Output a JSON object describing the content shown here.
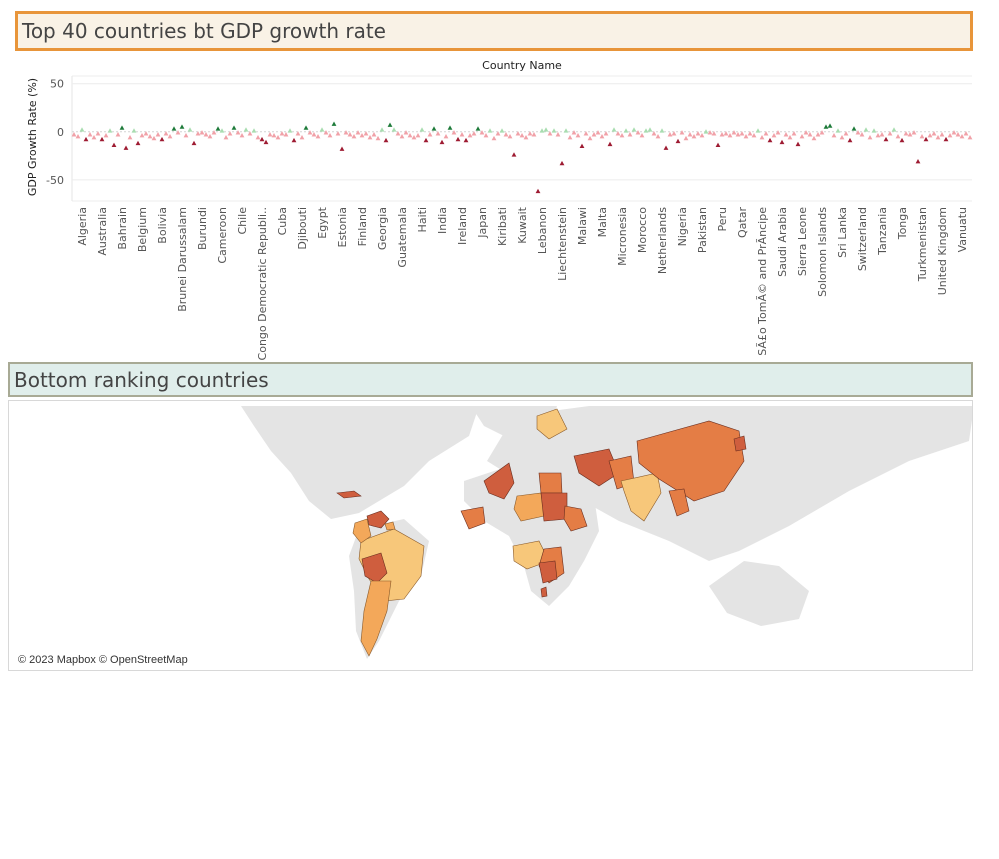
{
  "header": {
    "title": "Top 40 countries bt GDP growth rate"
  },
  "section2": {
    "title": "Bottom ranking countries"
  },
  "map": {
    "attribution": "© 2023 Mapbox © OpenStreetMap",
    "palette": [
      "#f7c77a",
      "#f3a85a",
      "#e47d45",
      "#cf5e3e"
    ]
  },
  "colors": {
    "dark_green": "#1e7b3a",
    "light_green": "#a8ddb0",
    "dark_red": "#9e1b32",
    "light_red": "#f1a1a8"
  },
  "chart_data": {
    "type": "scatter",
    "marker": "triangle",
    "xlabel": "Country Name",
    "ylabel": "GDP Growth Rate (%)",
    "ylim": [
      -72,
      58
    ],
    "yticks": [
      50,
      0,
      -50
    ],
    "grid": true,
    "categories": [
      "Algeria",
      "Australia",
      "Bahrain",
      "Belgium",
      "Bolivia",
      "Brunei Darussalam",
      "Burundi",
      "Cameroon",
      "Chile",
      "Congo Democratic Republi..",
      "Cuba",
      "Djibouti",
      "Egypt",
      "Estonia",
      "Finland",
      "Georgia",
      "Guatemala",
      "Haiti",
      "India",
      "Ireland",
      "Japan",
      "Kiribati",
      "Kuwait",
      "Lebanon",
      "Liechtenstein",
      "Malawi",
      "Malta",
      "Micronesia",
      "Morocco",
      "Netherlands",
      "Nigeria",
      "Pakistan",
      "Peru",
      "Qatar",
      "SÃ£o TomÃ© and PrÃncipe",
      "Saudi Arabia",
      "Sierra Leone",
      "Solomon Islands",
      "Sri Lanka",
      "Switzerland",
      "Tanzania",
      "Tonga",
      "Turkmenistan",
      "United Kingdom",
      "Vanuatu"
    ],
    "points": [
      [
        -3,
        -5,
        2,
        -8,
        -3
      ],
      [
        -6,
        -2,
        -8,
        -4,
        1
      ],
      [
        -14,
        -3,
        4,
        -17,
        -6
      ],
      [
        1,
        -12,
        -4,
        -2,
        -5
      ],
      [
        -7,
        -3,
        -8,
        -2,
        -5
      ],
      [
        3,
        -1,
        5,
        -4,
        2
      ],
      [
        -12,
        -2,
        -1,
        -3,
        -5
      ],
      [
        -1,
        3,
        1,
        -6,
        -2
      ],
      [
        4,
        -1,
        -4,
        2,
        -2
      ],
      [
        1,
        -6,
        -8,
        -11,
        -3
      ],
      [
        -4,
        -6,
        -2,
        -3,
        1
      ],
      [
        -9,
        -2,
        -6,
        4,
        -1
      ],
      [
        -3,
        -5,
        2,
        -1,
        -4
      ],
      [
        8,
        -2,
        -18,
        -1,
        -3
      ],
      [
        -5,
        -1,
        -4,
        -2,
        -6
      ],
      [
        -3,
        -7,
        2,
        -9,
        7
      ],
      [
        2,
        -2,
        -5,
        -1,
        -4
      ],
      [
        -6,
        -4,
        2,
        -9,
        -3
      ],
      [
        3,
        -2,
        -11,
        -5,
        4
      ],
      [
        -1,
        -8,
        -3,
        -9,
        -4
      ],
      [
        -2,
        3,
        -1,
        -4,
        1
      ],
      [
        -7,
        -2,
        1,
        -3,
        -5
      ],
      [
        -24,
        -2,
        -4,
        -6,
        -2
      ],
      [
        -3,
        -62,
        1,
        2,
        -2
      ],
      [
        1,
        -3,
        -33,
        1,
        -6
      ],
      [
        -1,
        -4,
        -15,
        -2,
        -7
      ],
      [
        -3,
        -1,
        -5,
        -2,
        -13
      ],
      [
        2,
        -2,
        -4,
        1,
        -3
      ],
      [
        2,
        -1,
        -4,
        1,
        2
      ],
      [
        -2,
        -5,
        1,
        -17,
        -3
      ],
      [
        -2,
        -10,
        -1,
        -7,
        -3
      ],
      [
        -5,
        -2,
        -4,
        0,
        -1
      ],
      [
        -2,
        -14,
        -3,
        -2,
        -4
      ],
      [
        -1,
        -3,
        -2,
        -5,
        -2
      ],
      [
        -4,
        1,
        -6,
        -2,
        -9
      ],
      [
        -4,
        -1,
        -11,
        -3,
        -6
      ],
      [
        -2,
        -13,
        -5,
        -1,
        -3
      ],
      [
        -7,
        -3,
        -1,
        5,
        6
      ],
      [
        -4,
        1,
        -6,
        -2,
        -9
      ],
      [
        3,
        -1,
        -3,
        2,
        -6
      ],
      [
        1,
        -4,
        -3,
        -8,
        -2
      ],
      [
        2,
        -5,
        -9,
        -2,
        -3
      ],
      [
        -1,
        -31,
        -5,
        -8,
        -4
      ],
      [
        -2,
        -6,
        -3,
        -8,
        -4
      ],
      [
        -1,
        -3,
        -5,
        -2,
        -6
      ]
    ]
  }
}
